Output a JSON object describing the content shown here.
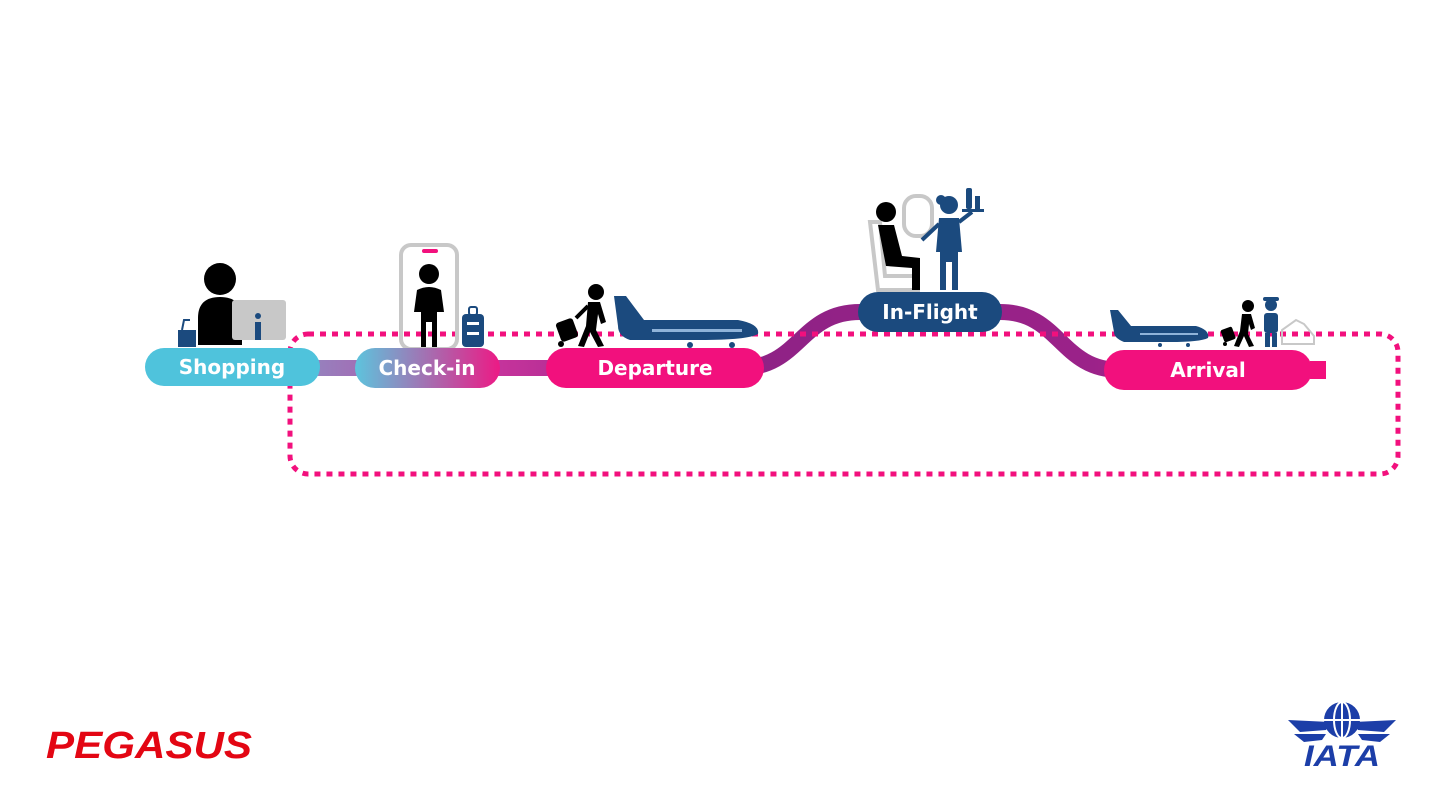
{
  "journey": {
    "stages": [
      {
        "label": "Shopping",
        "color": "#4fc3dc"
      },
      {
        "label": "Check-in",
        "color": "#c04fb5"
      },
      {
        "label": "Departure",
        "color": "#f2107d"
      },
      {
        "label": "In-Flight",
        "color": "#1b4a7e"
      },
      {
        "label": "Arrival",
        "color": "#f2107d"
      }
    ],
    "loop_color": "#f2107d",
    "path_colors": {
      "start": "#6ec6dc",
      "middle": "#c4339b",
      "flight": "#8e2285"
    }
  },
  "icons": {
    "shopping": [
      "person-at-computer-icon",
      "shopping-bag-icon"
    ],
    "checkin": [
      "phone-icon",
      "person-icon",
      "luggage-icon"
    ],
    "departure": [
      "traveler-with-luggage-icon",
      "airplane-icon"
    ],
    "inflight": [
      "seated-passenger-icon",
      "window-icon",
      "flight-attendant-icon"
    ],
    "arrival": [
      "airplane-icon",
      "traveler-with-luggage-icon",
      "greeter-icon",
      "car-icon"
    ]
  },
  "logos": {
    "left": {
      "text": "PEGASUS",
      "color": "#e30613"
    },
    "right": {
      "text": "IATA",
      "color": "#1c3ea8"
    }
  }
}
